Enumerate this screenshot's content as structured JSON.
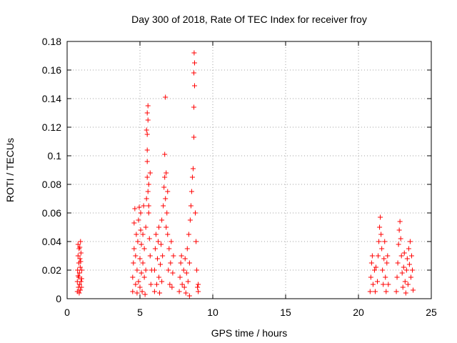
{
  "chart_data": {
    "type": "scatter",
    "title": "Day 300 of 2018, Rate Of TEC Index for receiver froy",
    "xlabel": "GPS time / hours",
    "ylabel": "ROTI / TECUs",
    "xlim": [
      0,
      25
    ],
    "ylim": [
      0,
      0.18
    ],
    "xticks": [
      "0",
      "5",
      "10",
      "15",
      "20",
      "25"
    ],
    "yticks": [
      "0",
      "0.02",
      "0.04",
      "0.06",
      "0.08",
      "0.1",
      "0.12",
      "0.14",
      "0.16",
      "0.18"
    ],
    "grid": true,
    "marker": "+",
    "color": "#ff0000",
    "points": [
      [
        0.7,
        0.005
      ],
      [
        0.7,
        0.012
      ],
      [
        0.72,
        0.02
      ],
      [
        0.75,
        0.03
      ],
      [
        0.75,
        0.038
      ],
      [
        0.78,
        0.008
      ],
      [
        0.8,
        0.015
      ],
      [
        0.8,
        0.025
      ],
      [
        0.82,
        0.035
      ],
      [
        0.85,
        0.01
      ],
      [
        0.85,
        0.018
      ],
      [
        0.88,
        0.028
      ],
      [
        0.9,
        0.006
      ],
      [
        0.9,
        0.022
      ],
      [
        0.92,
        0.04
      ],
      [
        0.95,
        0.012
      ],
      [
        0.95,
        0.032
      ],
      [
        0.98,
        0.008
      ],
      [
        1.0,
        0.02
      ],
      [
        1.0,
        0.014
      ],
      [
        0.75,
        0.016
      ],
      [
        0.83,
        0.004
      ],
      [
        0.87,
        0.036
      ],
      [
        0.93,
        0.026
      ],
      [
        4.5,
        0.005
      ],
      [
        4.5,
        0.015
      ],
      [
        4.55,
        0.025
      ],
      [
        4.6,
        0.035
      ],
      [
        4.6,
        0.053
      ],
      [
        4.65,
        0.063
      ],
      [
        4.7,
        0.01
      ],
      [
        4.7,
        0.03
      ],
      [
        4.75,
        0.045
      ],
      [
        4.8,
        0.02
      ],
      [
        4.8,
        0.004
      ],
      [
        4.85,
        0.04
      ],
      [
        4.9,
        0.012
      ],
      [
        4.9,
        0.055
      ],
      [
        4.95,
        0.064
      ],
      [
        5.0,
        0.008
      ],
      [
        5.0,
        0.028
      ],
      [
        5.05,
        0.048
      ],
      [
        5.05,
        0.06
      ],
      [
        5.1,
        0.018
      ],
      [
        5.1,
        0.038
      ],
      [
        5.15,
        0.005
      ],
      [
        5.2,
        0.025
      ],
      [
        5.2,
        0.045
      ],
      [
        5.25,
        0.065
      ],
      [
        5.3,
        0.015
      ],
      [
        5.3,
        0.035
      ],
      [
        5.35,
        0.003
      ],
      [
        5.4,
        0.02
      ],
      [
        5.4,
        0.05
      ],
      [
        5.45,
        0.07
      ],
      [
        5.5,
        0.085
      ],
      [
        5.5,
        0.104
      ],
      [
        5.5,
        0.115
      ],
      [
        5.55,
        0.125
      ],
      [
        5.5,
        0.13
      ],
      [
        5.55,
        0.135
      ],
      [
        5.5,
        0.096
      ],
      [
        5.6,
        0.08
      ],
      [
        5.6,
        0.06
      ],
      [
        5.65,
        0.042
      ],
      [
        5.7,
        0.03
      ],
      [
        5.7,
        0.088
      ],
      [
        5.75,
        0.01
      ],
      [
        5.8,
        0.02
      ],
      [
        5.55,
        0.075
      ],
      [
        5.6,
        0.065
      ],
      [
        5.45,
        0.118
      ],
      [
        6.0,
        0.005
      ],
      [
        6.0,
        0.02
      ],
      [
        6.05,
        0.035
      ],
      [
        6.1,
        0.045
      ],
      [
        6.15,
        0.01
      ],
      [
        6.2,
        0.028
      ],
      [
        6.25,
        0.04
      ],
      [
        6.3,
        0.015
      ],
      [
        6.3,
        0.05
      ],
      [
        6.35,
        0.004
      ],
      [
        6.4,
        0.024
      ],
      [
        6.45,
        0.038
      ],
      [
        6.5,
        0.012
      ],
      [
        6.5,
        0.055
      ],
      [
        6.55,
        0.03
      ],
      [
        6.6,
        0.065
      ],
      [
        6.65,
        0.078
      ],
      [
        6.7,
        0.085
      ],
      [
        6.7,
        0.101
      ],
      [
        6.75,
        0.141
      ],
      [
        6.75,
        0.07
      ],
      [
        6.8,
        0.05
      ],
      [
        6.85,
        0.06
      ],
      [
        6.9,
        0.045
      ],
      [
        6.95,
        0.02
      ],
      [
        7.0,
        0.035
      ],
      [
        7.05,
        0.01
      ],
      [
        7.1,
        0.025
      ],
      [
        7.15,
        0.04
      ],
      [
        7.2,
        0.008
      ],
      [
        7.25,
        0.018
      ],
      [
        7.3,
        0.03
      ],
      [
        6.8,
        0.088
      ],
      [
        6.9,
        0.075
      ],
      [
        7.7,
        0.005
      ],
      [
        7.75,
        0.015
      ],
      [
        7.8,
        0.025
      ],
      [
        7.85,
        0.03
      ],
      [
        7.9,
        0.01
      ],
      [
        8.0,
        0.02
      ],
      [
        8.05,
        0.008
      ],
      [
        8.1,
        0.028
      ],
      [
        8.15,
        0.004
      ],
      [
        8.2,
        0.018
      ],
      [
        8.25,
        0.035
      ],
      [
        8.3,
        0.012
      ],
      [
        8.35,
        0.045
      ],
      [
        8.4,
        0.025
      ],
      [
        8.45,
        0.055
      ],
      [
        8.5,
        0.065
      ],
      [
        8.55,
        0.075
      ],
      [
        8.6,
        0.085
      ],
      [
        8.65,
        0.091
      ],
      [
        8.7,
        0.113
      ],
      [
        8.7,
        0.134
      ],
      [
        8.75,
        0.149
      ],
      [
        8.7,
        0.158
      ],
      [
        8.75,
        0.165
      ],
      [
        8.72,
        0.172
      ],
      [
        8.8,
        0.06
      ],
      [
        8.85,
        0.04
      ],
      [
        8.9,
        0.02
      ],
      [
        8.95,
        0.008
      ],
      [
        9.0,
        0.005
      ],
      [
        9.0,
        0.01
      ],
      [
        8.4,
        0.002
      ],
      [
        20.8,
        0.005
      ],
      [
        20.85,
        0.015
      ],
      [
        20.9,
        0.025
      ],
      [
        20.95,
        0.03
      ],
      [
        21.0,
        0.01
      ],
      [
        21.1,
        0.02
      ],
      [
        21.15,
        0.005
      ],
      [
        21.2,
        0.022
      ],
      [
        21.3,
        0.012
      ],
      [
        21.35,
        0.03
      ],
      [
        21.4,
        0.04
      ],
      [
        21.45,
        0.05
      ],
      [
        21.5,
        0.057
      ],
      [
        21.55,
        0.045
      ],
      [
        21.6,
        0.035
      ],
      [
        21.65,
        0.02
      ],
      [
        21.7,
        0.01
      ],
      [
        21.75,
        0.028
      ],
      [
        21.8,
        0.04
      ],
      [
        21.85,
        0.015
      ],
      [
        21.9,
        0.005
      ],
      [
        21.95,
        0.025
      ],
      [
        22.0,
        0.03
      ],
      [
        22.05,
        0.01
      ],
      [
        22.6,
        0.005
      ],
      [
        22.65,
        0.015
      ],
      [
        22.7,
        0.025
      ],
      [
        22.75,
        0.038
      ],
      [
        22.8,
        0.048
      ],
      [
        22.85,
        0.054
      ],
      [
        22.9,
        0.042
      ],
      [
        22.95,
        0.03
      ],
      [
        23.0,
        0.018
      ],
      [
        23.05,
        0.008
      ],
      [
        23.1,
        0.022
      ],
      [
        23.15,
        0.032
      ],
      [
        23.2,
        0.012
      ],
      [
        23.25,
        0.004
      ],
      [
        23.3,
        0.02
      ],
      [
        23.35,
        0.028
      ],
      [
        23.4,
        0.01
      ],
      [
        23.45,
        0.035
      ],
      [
        23.5,
        0.024
      ],
      [
        23.55,
        0.04
      ],
      [
        23.6,
        0.015
      ],
      [
        23.65,
        0.03
      ],
      [
        23.7,
        0.02
      ],
      [
        23.75,
        0.006
      ]
    ]
  }
}
